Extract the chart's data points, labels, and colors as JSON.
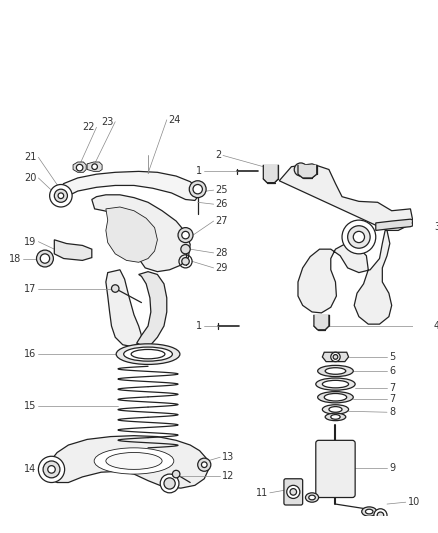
{
  "bg_color": "#ffffff",
  "line_color": "#222222",
  "label_color": "#333333",
  "leader_color": "#888888",
  "label_fontsize": 7.0,
  "figsize": [
    4.38,
    5.33
  ],
  "dpi": 100
}
